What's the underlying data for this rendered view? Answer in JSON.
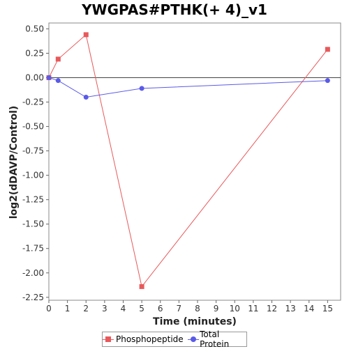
{
  "chart_data": {
    "type": "line",
    "title": "YWGPAS#PTHK(+ 4)_v1",
    "xlabel": "Time (minutes)",
    "ylabel": "log2(dDAVP/Control)",
    "xlim": [
      0,
      15.7
    ],
    "ylim": [
      -2.28,
      0.56
    ],
    "xticks": [
      0,
      1,
      2,
      3,
      4,
      5,
      6,
      7,
      8,
      9,
      10,
      11,
      12,
      13,
      14,
      15
    ],
    "yticks": [
      0.5,
      0.25,
      0.0,
      -0.25,
      -0.5,
      -0.75,
      -1.0,
      -1.25,
      -1.5,
      -1.75,
      -2.0,
      -2.25
    ],
    "ytick_labels": [
      "0.50",
      "0.25",
      "0.00",
      "-0.25",
      "-0.50",
      "-0.75",
      "-1.00",
      "-1.25",
      "-1.50",
      "-1.75",
      "-2.00",
      "-2.25"
    ],
    "zero_line": true,
    "grid": false,
    "legend_position": "bottom",
    "series": [
      {
        "name": "Phosphopeptide",
        "color": "#e8595b",
        "marker": "square",
        "x": [
          0,
          0.5,
          2,
          5,
          15
        ],
        "y": [
          0.0,
          0.19,
          0.44,
          -2.14,
          0.29
        ]
      },
      {
        "name": "Total Protein",
        "color": "#5a5ae8",
        "marker": "circle",
        "x": [
          0,
          0.5,
          2,
          5,
          15
        ],
        "y": [
          0.0,
          -0.03,
          -0.2,
          -0.11,
          -0.03
        ]
      }
    ]
  }
}
